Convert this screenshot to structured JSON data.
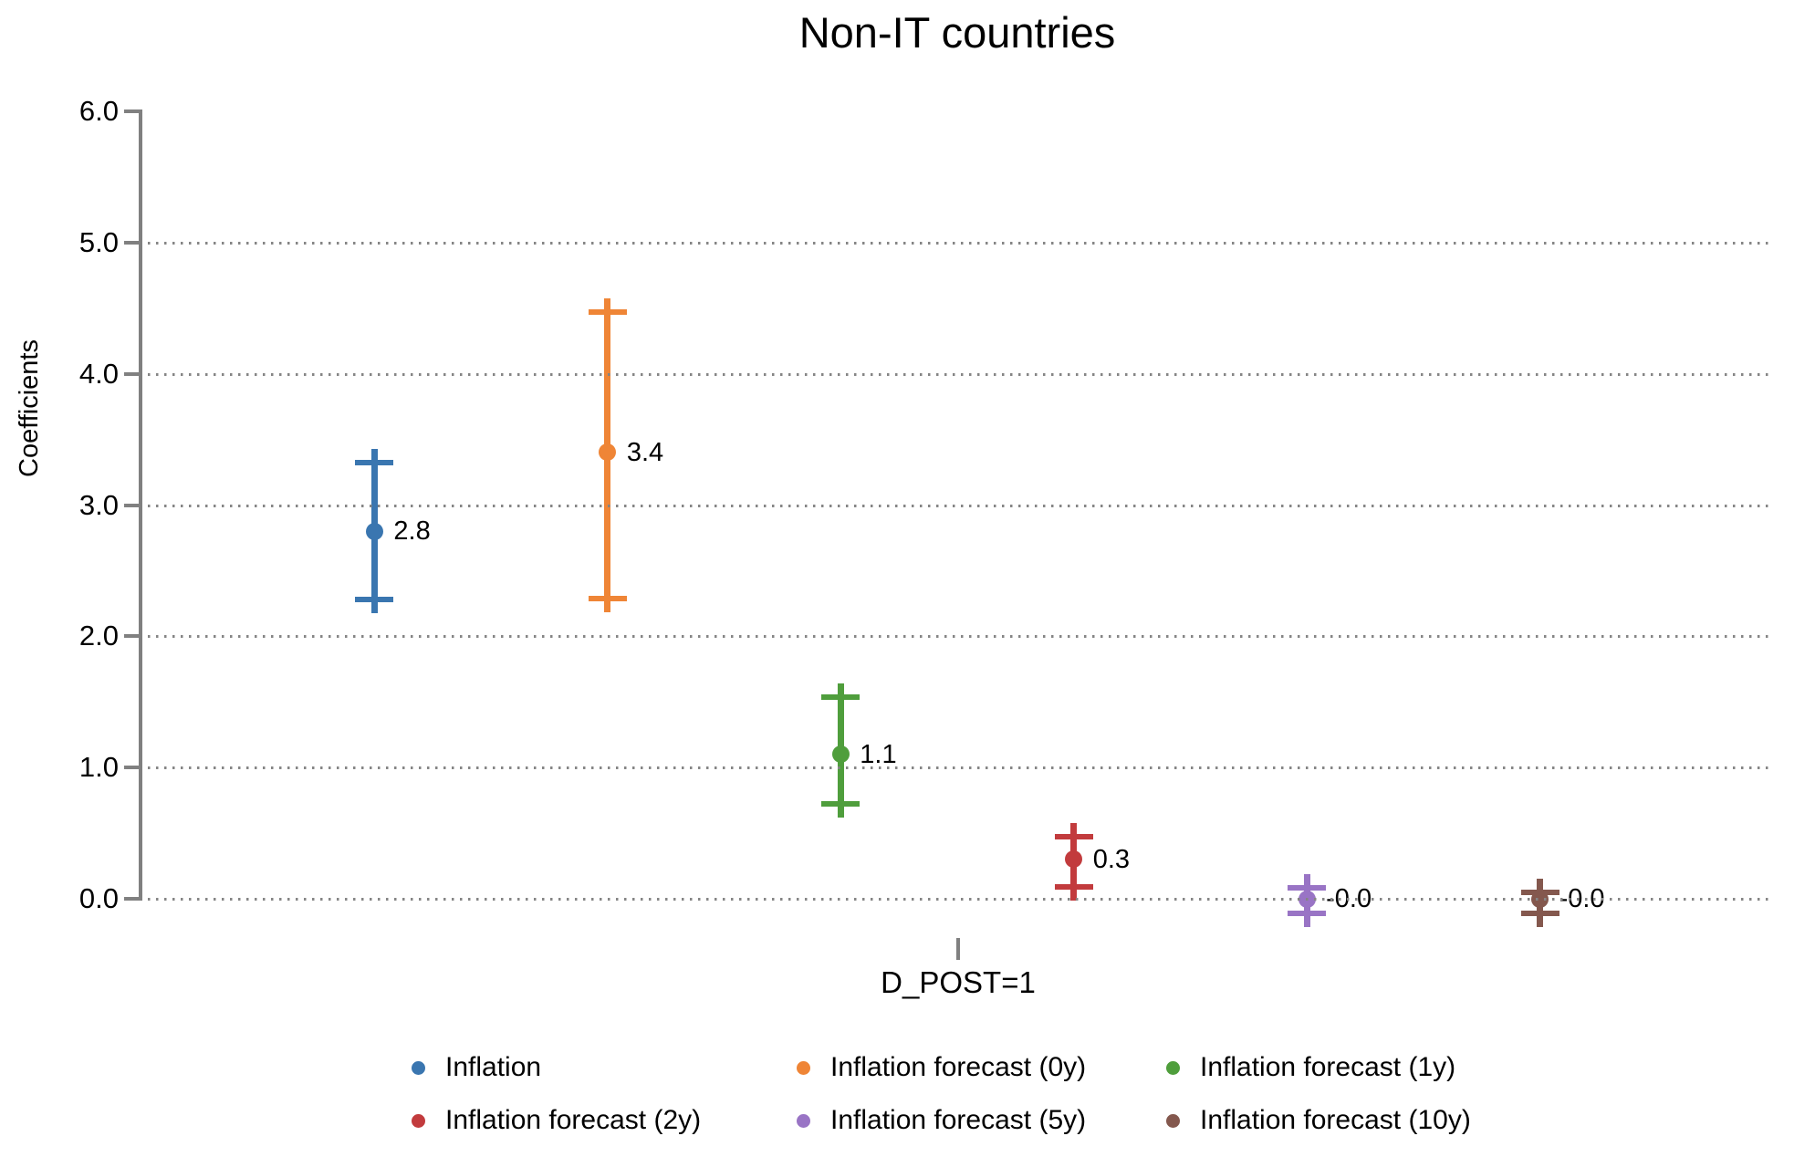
{
  "title": "Non-IT countries",
  "colors": {
    "axis": "#808080",
    "grid_dots": "#858585",
    "text": "#000000",
    "background": "#ffffff"
  },
  "chart_data": {
    "type": "scatter",
    "subtype": "coefficient-plot-with-confidence-intervals",
    "title": "Non-IT countries",
    "xlabel": "",
    "ylabel": "Coefficients",
    "x_category": "D_POST=1",
    "ylim": [
      0.0,
      6.0
    ],
    "y_tick_labels": [
      "6.0",
      "5.0",
      "4.0",
      "3.0",
      "2.0",
      "1.0",
      "0.0"
    ],
    "y_tick_values": [
      6,
      5,
      4,
      3,
      2,
      1,
      0
    ],
    "grid_values": [
      5,
      4,
      3,
      2,
      1,
      0
    ],
    "grid_style": "dotted",
    "legend_position": "bottom",
    "legend_columns": 3,
    "series": [
      {
        "name": "Inflation",
        "color": "#3a76b0",
        "value": 2.8,
        "value_label": "2.8",
        "ci_low": 2.28,
        "ci_high": 3.32
      },
      {
        "name": "Inflation forecast (0y)",
        "color": "#ef8536",
        "value": 3.4,
        "value_label": "3.4",
        "ci_low": 2.29,
        "ci_high": 4.47
      },
      {
        "name": "Inflation forecast (1y)",
        "color": "#4f9e3c",
        "value": 1.1,
        "value_label": "1.1",
        "ci_low": 0.72,
        "ci_high": 1.54
      },
      {
        "name": "Inflation forecast (2y)",
        "color": "#c23b3d",
        "value": 0.3,
        "value_label": "0.3",
        "ci_low": 0.09,
        "ci_high": 0.47
      },
      {
        "name": "Inflation forecast (5y)",
        "color": "#9974c5",
        "value": -0.0,
        "value_label": "-0.0",
        "ci_low": -0.11,
        "ci_high": 0.08
      },
      {
        "name": "Inflation forecast (10y)",
        "color": "#84584e",
        "value": -0.0,
        "value_label": "-0.0",
        "ci_low": -0.11,
        "ci_high": 0.05
      }
    ]
  }
}
